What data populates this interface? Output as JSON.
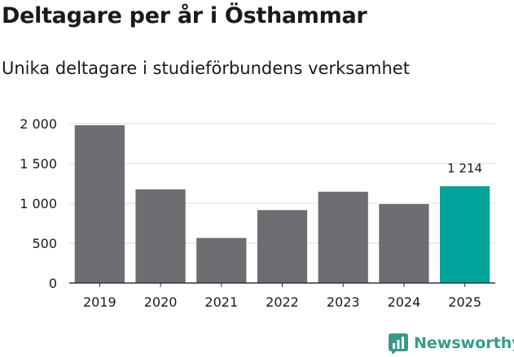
{
  "title": "Deltagare per år i Östhammar",
  "subtitle": "Unika deltagare i studieförbundens verksamhet",
  "brand": {
    "name": "Newsworthy",
    "icon": "newsworthy-logo-icon"
  },
  "colors": {
    "bar": "#6e6d72",
    "highlight": "#00a49a",
    "grid": "#dddddd",
    "axis": "#333333",
    "brand": "#3a9a8a"
  },
  "chart_data": {
    "type": "bar",
    "categories": [
      "2019",
      "2020",
      "2021",
      "2022",
      "2023",
      "2024",
      "2025"
    ],
    "values": [
      1980,
      1175,
      565,
      915,
      1145,
      990,
      1214
    ],
    "highlight_index": 6,
    "data_labels": [
      {
        "index": 6,
        "text": "1 214"
      }
    ],
    "ylim": [
      0,
      2000
    ],
    "yticks": [
      0,
      500,
      1000,
      1500,
      2000
    ],
    "ytick_labels": [
      "0",
      "500",
      "1 000",
      "1 500",
      "2 000"
    ],
    "xlabel": "",
    "ylabel": "",
    "grid": true
  }
}
